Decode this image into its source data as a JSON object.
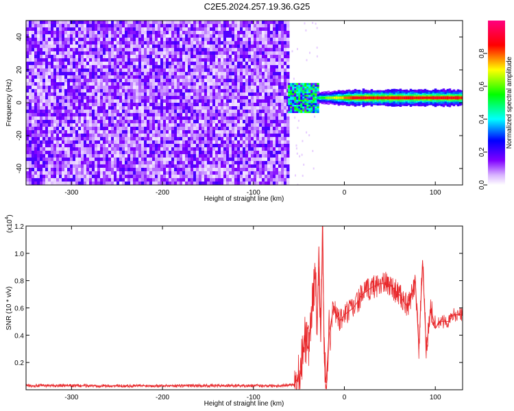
{
  "title": "C2E5.2024.257.19.36.G25",
  "chart_data": [
    {
      "type": "heatmap",
      "xlabel": "Height of straight line (km)",
      "ylabel": "Frequency (Hz)",
      "xlim": [
        -350,
        130
      ],
      "ylim": [
        -50,
        50
      ],
      "x_ticks": [
        -300,
        -200,
        -100,
        0,
        100
      ],
      "y_ticks": [
        -40,
        -20,
        0,
        20,
        40
      ],
      "colorbar": {
        "label": "Normalized spectral amplitude",
        "range": [
          0,
          1
        ],
        "ticks": [
          "0.0",
          "0.2",
          "0.4",
          "0.6",
          "0.8"
        ],
        "colors": [
          "#ffffff",
          "#d9b3ff",
          "#7f00ff",
          "#0000ff",
          "#00ffff",
          "#00ff00",
          "#ffff00",
          "#ff0000",
          "#ff007f"
        ]
      },
      "regions": [
        {
          "name": "noise",
          "x_range": [
            -350,
            -62
          ],
          "freq_range": [
            -50,
            50
          ],
          "amplitude_range": [
            0.0,
            0.25
          ]
        },
        {
          "name": "signal-onset",
          "x_range": [
            -62,
            -30
          ],
          "freq_range": [
            -5,
            12
          ],
          "amplitude_range": [
            0.3,
            0.6
          ]
        },
        {
          "name": "signal-band",
          "x_range": [
            -30,
            130
          ],
          "center_freq": 3,
          "amplitude_peak": 1.0
        }
      ]
    },
    {
      "type": "line",
      "xlabel": "Height of straight line (km)",
      "ylabel": "SNR (10 * v/v)",
      "y_scale_label": "(x10",
      "y_scale_exponent": "4",
      "y_scale_close": ")",
      "xlim": [
        -350,
        130
      ],
      "ylim": [
        0,
        1.2
      ],
      "x_ticks": [
        -300,
        -200,
        -100,
        0,
        100
      ],
      "y_ticks": [
        "0.2",
        "0.4",
        "0.6",
        "0.8",
        "1.0",
        "1.2"
      ],
      "series": [
        {
          "color": "#e8282b",
          "points": [
            [
              -350,
              0.03
            ],
            [
              -300,
              0.03
            ],
            [
              -250,
              0.028
            ],
            [
              -200,
              0.03
            ],
            [
              -150,
              0.03
            ],
            [
              -100,
              0.03
            ],
            [
              -70,
              0.03
            ],
            [
              -55,
              0.04
            ],
            [
              -48,
              0.12
            ],
            [
              -44,
              0.4
            ],
            [
              -40,
              0.3
            ],
            [
              -36,
              0.55
            ],
            [
              -32,
              0.9
            ],
            [
              -30,
              0.4
            ],
            [
              -28,
              1.05
            ],
            [
              -26,
              0.35
            ],
            [
              -24,
              1.2
            ],
            [
              -22,
              0.2
            ],
            [
              -20,
              0.05
            ],
            [
              -17,
              0.4
            ],
            [
              -12,
              0.6
            ],
            [
              -5,
              0.5
            ],
            [
              0,
              0.55
            ],
            [
              10,
              0.6
            ],
            [
              20,
              0.7
            ],
            [
              30,
              0.75
            ],
            [
              40,
              0.78
            ],
            [
              50,
              0.77
            ],
            [
              60,
              0.7
            ],
            [
              70,
              0.6
            ],
            [
              78,
              0.8
            ],
            [
              82,
              0.3
            ],
            [
              86,
              0.95
            ],
            [
              90,
              0.3
            ],
            [
              95,
              0.6
            ],
            [
              100,
              0.45
            ],
            [
              105,
              0.5
            ],
            [
              115,
              0.5
            ],
            [
              120,
              0.55
            ],
            [
              130,
              0.55
            ]
          ]
        }
      ]
    }
  ]
}
